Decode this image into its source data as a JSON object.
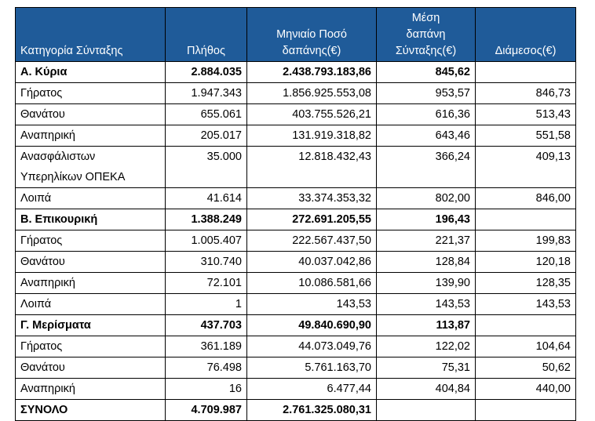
{
  "header": {
    "category": "Κατηγορία Σύνταξης",
    "count": "Πλήθος",
    "monthly_line1": "Μηνιαίο Ποσό",
    "monthly_line2": "δαπάνης(€)",
    "avg_line1": "Μέση",
    "avg_line2": "δαπάνη",
    "avg_line3": "Σύνταξης(€)",
    "median": "Διάμεσος(€)"
  },
  "rows": [
    {
      "category": "Α. Κύρια",
      "count": "2.884.035",
      "monthly": "2.438.793.183,86",
      "avg": "845,62",
      "median": "",
      "bold": true
    },
    {
      "category": "Γήρατος",
      "count": "1.947.343",
      "monthly": "1.856.925.553,08",
      "avg": "953,57",
      "median": "846,73"
    },
    {
      "category": "Θανάτου",
      "count": "655.061",
      "monthly": "403.755.526,21",
      "avg": "616,36",
      "median": "513,43"
    },
    {
      "category": "Αναπηρική",
      "count": "205.017",
      "monthly": "131.919.318,82",
      "avg": "643,46",
      "median": "551,58"
    },
    {
      "category": "Ανασφάλιστων Υπερηλίκων ΟΠΕΚΑ",
      "category_line1": "Ανασφάλιστων",
      "category_line2": "Υπερηλίκων ΟΠΕΚΑ",
      "count": "35.000",
      "monthly": "12.818.432,43",
      "avg": "366,24",
      "median": "409,13"
    },
    {
      "category": "Λοιπά",
      "count": "41.614",
      "monthly": "33.374.353,32",
      "avg": "802,00",
      "median": "846,00"
    },
    {
      "category": "Β. Επικουρική",
      "count": "1.388.249",
      "monthly": "272.691.205,55",
      "avg": "196,43",
      "median": "",
      "bold": true
    },
    {
      "category": "Γήρατος",
      "count": "1.005.407",
      "monthly": "222.567.437,50",
      "avg": "221,37",
      "median": "199,83"
    },
    {
      "category": "Θανάτου",
      "count": "310.740",
      "monthly": "40.037.042,86",
      "avg": "128,84",
      "median": "120,18"
    },
    {
      "category": "Αναπηρική",
      "count": "72.101",
      "monthly": "10.086.581,66",
      "avg": "139,90",
      "median": "128,35"
    },
    {
      "category": "Λοιπά",
      "count": "1",
      "monthly": "143,53",
      "avg": "143,53",
      "median": "143,53"
    },
    {
      "category": "Γ. Μερίσματα",
      "count": "437.703",
      "monthly": "49.840.690,90",
      "avg": "113,87",
      "median": "",
      "bold": true
    },
    {
      "category": "Γήρατος",
      "count": "361.189",
      "monthly": "44.073.049,76",
      "avg": "122,02",
      "median": "104,64"
    },
    {
      "category": "Θανάτου",
      "count": "76.498",
      "monthly": "5.761.163,70",
      "avg": "75,31",
      "median": "50,62"
    },
    {
      "category": "Αναπηρική",
      "count": "16",
      "monthly": "6.477,44",
      "avg": "404,84",
      "median": "440,00"
    },
    {
      "category": "ΣΥΝΟΛΟ",
      "count": "4.709.987",
      "monthly": "2.761.325.080,31",
      "avg": "",
      "median": "",
      "bold": true
    }
  ],
  "colors": {
    "header_bg": "#1f5b99",
    "header_text": "#ffffff"
  }
}
